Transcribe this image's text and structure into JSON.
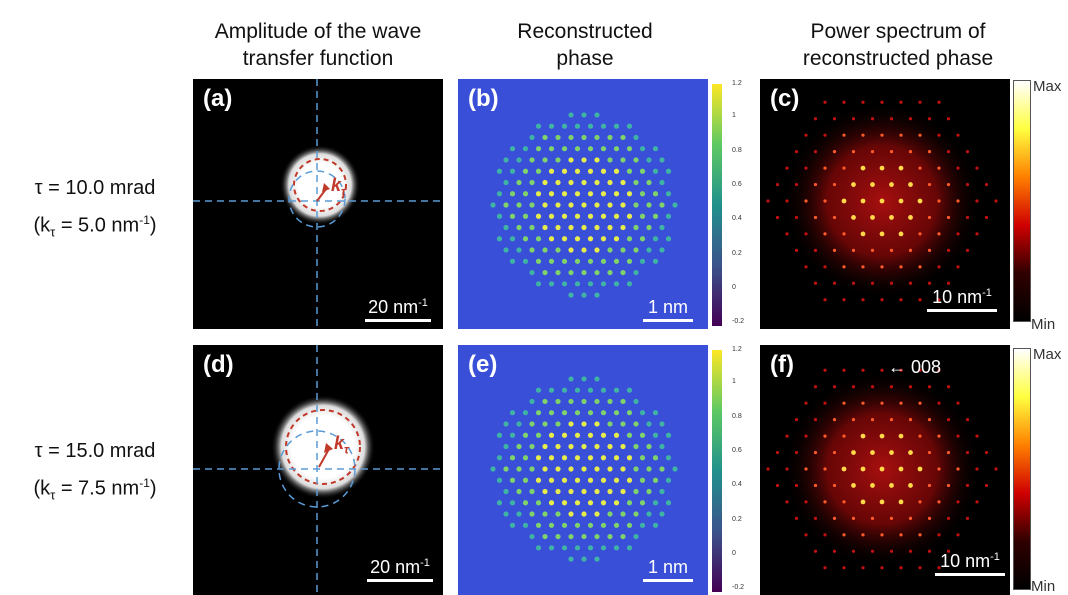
{
  "columns": [
    {
      "title_line1": "Amplitude of the wave",
      "title_line2": "transfer function"
    },
    {
      "title_line1": "Reconstructed",
      "title_line2": "phase"
    },
    {
      "title_line1": "Power spectrum of",
      "title_line2": "reconstructed phase"
    }
  ],
  "rows": [
    {
      "tau": "τ = 10.0 mrad",
      "k_prefix": "(k",
      "k_sub": "τ",
      "k_value": " = 5.0 nm",
      "k_sup": "-1",
      "k_suffix": ")"
    },
    {
      "tau": "τ = 15.0 mrad",
      "k_prefix": "(k",
      "k_sub": "τ",
      "k_value": " = 7.5 nm",
      "k_sup": "-1",
      "k_suffix": ")"
    }
  ],
  "panels": {
    "a": {
      "tag": "(a)",
      "scale_text": "20 nm",
      "scale_sup": "-1",
      "k_label": "k",
      "k_sub": "τ"
    },
    "b": {
      "tag": "(b)",
      "scale_text": "1 nm"
    },
    "c": {
      "tag": "(c)",
      "scale_text": "10 nm",
      "scale_sup": "-1"
    },
    "d": {
      "tag": "(d)",
      "scale_text": "20 nm",
      "scale_sup": "-1",
      "k_label": "k",
      "k_sub": "τ"
    },
    "e": {
      "tag": "(e)",
      "scale_text": "1 nm"
    },
    "f": {
      "tag": "(f)",
      "scale_text": "10 nm",
      "scale_sup": "-1",
      "arrow_label": "← 008"
    }
  },
  "phase_colorbar": {
    "ticks": [
      "1.2",
      "1",
      "0.8",
      "0.6",
      "0.4",
      "0.2",
      "0",
      "-0.2"
    ],
    "vmax": 1.2,
    "vmin": -0.2,
    "colors": [
      "#fde725",
      "#5ec962",
      "#21918c",
      "#3b528b",
      "#440154"
    ]
  },
  "power_colorbar": {
    "max_label": "Max",
    "min_label": "Min",
    "colors": [
      "#ffffff",
      "#ffff40",
      "#ff8000",
      "#d00000",
      "#300000",
      "#000000"
    ]
  },
  "colors": {
    "guide_line": "#5b9bd5",
    "k_marker": "#c0392b",
    "phase_background": "#3a4fd8"
  }
}
